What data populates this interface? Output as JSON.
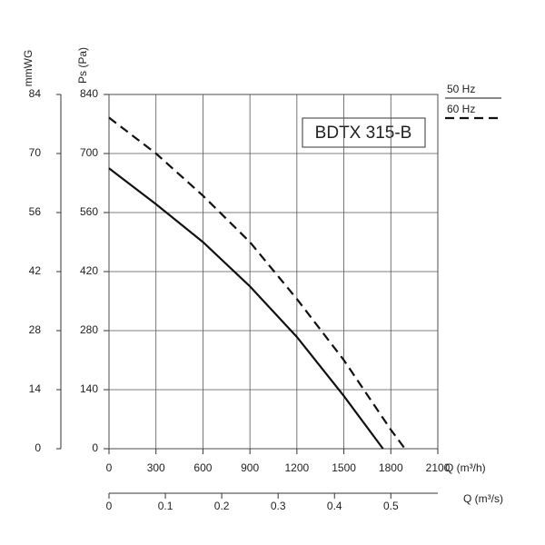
{
  "chart_data": {
    "type": "line",
    "model_label": "BDTX 315-B",
    "xlabel": "Q (m³/h)",
    "ylabel": "Ps (Pa)",
    "y2label": "mmWG",
    "x2label": "Q (m³/s)",
    "xlim": [
      0,
      2100
    ],
    "xticks": [
      0,
      300,
      600,
      900,
      1200,
      1500,
      1800,
      2100
    ],
    "ylim": [
      0,
      840
    ],
    "yticks": [
      0,
      140,
      280,
      420,
      560,
      700,
      840
    ],
    "y2lim": [
      0,
      84
    ],
    "y2ticks": [
      0,
      14,
      28,
      42,
      56,
      70,
      84
    ],
    "x2lim": [
      0,
      0.5833
    ],
    "x2ticks": [
      0,
      0.1,
      0.2,
      0.3,
      0.4,
      0.5
    ],
    "grid": true,
    "series": [
      {
        "name": "50 Hz",
        "color": "#111111",
        "dash": false,
        "x": [
          0,
          300,
          600,
          900,
          1200,
          1500,
          1750
        ],
        "values": [
          665,
          580,
          490,
          385,
          265,
          125,
          0
        ]
      },
      {
        "name": "60 Hz",
        "color": "#111111",
        "dash": true,
        "x": [
          0,
          300,
          600,
          900,
          1200,
          1500,
          1800,
          1890
        ],
        "values": [
          785,
          700,
          600,
          490,
          355,
          210,
          45,
          0
        ]
      }
    ]
  }
}
